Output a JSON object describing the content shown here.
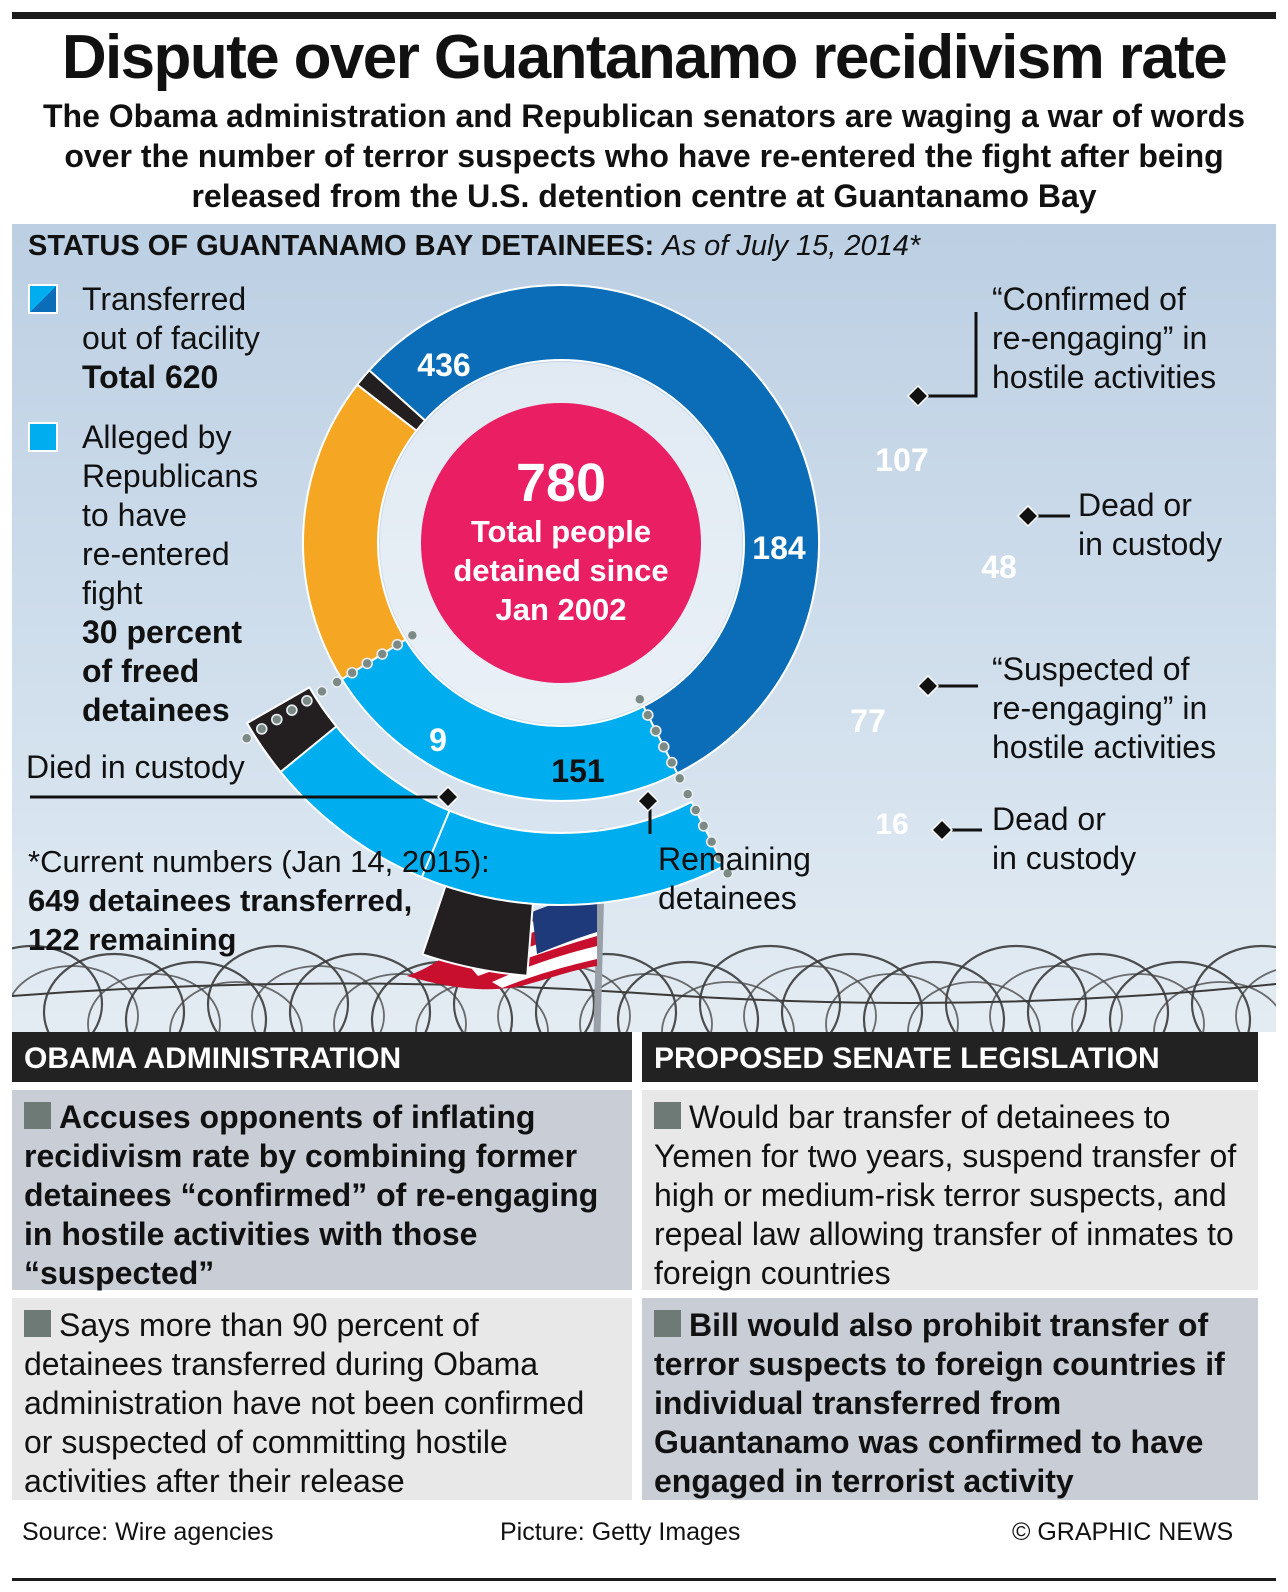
{
  "title": "Dispute over Guantanamo recidivism rate",
  "subtitle": "The Obama administration and Republican senators are waging a war of words over the number of terror suspects who have re-entered the fight after being released from the U.S. detention centre at Guantanamo Bay",
  "chart_title": "Status of Guantanamo Bay Detainees:",
  "chart_date": "As of July 15, 2014*",
  "legend": {
    "transferred_1": "Transferred",
    "transferred_2": "out of facility",
    "transferred_total": "Total 620",
    "alleged_1": "Alleged by",
    "alleged_2": "Republicans",
    "alleged_3": "to have",
    "alleged_4": "re-entered",
    "alleged_5": "fight",
    "alleged_bold_1": "30 percent",
    "alleged_bold_2": "of freed",
    "alleged_bold_3": "detainees"
  },
  "center": {
    "value": "780",
    "label_1": "Total people",
    "label_2": "detained since",
    "label_3": "Jan 2002"
  },
  "labels": {
    "died_in_custody": "Died in custody",
    "remaining_1": "Remaining",
    "remaining_2": "detainees",
    "confirmed_1": "“Confirmed of",
    "confirmed_2": "re-engaging” in",
    "confirmed_3": "hostile activities",
    "dead_1": "Dead or",
    "dead_2": "in custody",
    "suspected_1": "“Suspected of",
    "suspected_2": "re-engaging” in",
    "suspected_3": "hostile activities",
    "dead2_1": "Dead or",
    "dead2_2": "in custody"
  },
  "footnote": {
    "line1": "*Current numbers (Jan 14, 2015):",
    "line2": "649 detainees transferred,",
    "line3": "122 remaining"
  },
  "colors": {
    "transferred": "#0b6db7",
    "alleged": "#00aeef",
    "remaining": "#f5a623",
    "dead": "#231f20",
    "center": "#e91e63"
  },
  "chart_data": {
    "type": "pie",
    "title": "Status of Guantanamo Bay Detainees",
    "total": 780,
    "inner_ring": [
      {
        "name": "Transferred, not alleged",
        "value": 436
      },
      {
        "name": "Alleged by Republicans to have re-entered fight",
        "value": 184
      },
      {
        "name": "Remaining detainees",
        "value": 151
      },
      {
        "name": "Died in custody",
        "value": 9
      }
    ],
    "outer_ring": [
      {
        "name": "Confirmed of re-engaging in hostile activities",
        "value": 107
      },
      {
        "name": "Suspected of re-engaging in hostile activities",
        "value": 77
      }
    ],
    "dead_or_in_custody": [
      {
        "name": "Confirmed - Dead or in custody",
        "value": 48
      },
      {
        "name": "Suspected - Dead or in custody",
        "value": 16
      }
    ],
    "transferred_total": 620,
    "alleged_percent": 30
  },
  "obama": {
    "header": "Obama Administration",
    "item1": "Accuses opponents of inflating recidivism rate by combining former detainees “confirmed” of re-engaging in hostile activities with those “suspected”",
    "item2": "Says more than 90 percent of detainees transferred during Obama administration have not been confirmed or suspected of committing hostile activities after their release"
  },
  "senate": {
    "header": "Proposed Senate Legislation",
    "item1": "Would bar transfer of detainees to Yemen for two years, suspend transfer of high or medium-risk terror suspects, and repeal law allowing transfer of inmates to foreign countries",
    "item2": "Bill would also prohibit transfer of terror suspects to foreign countries if individual transferred from Guantanamo was confirmed to have engaged in terrorist activity"
  },
  "footer": {
    "source": "Source: Wire agencies",
    "picture": "Picture: Getty Images",
    "credit": "© GRAPHIC NEWS"
  }
}
